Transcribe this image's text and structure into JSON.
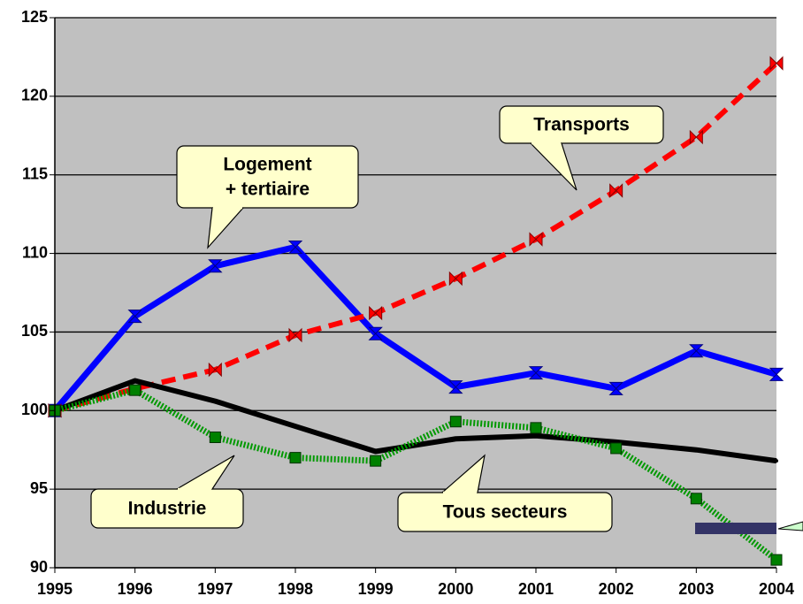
{
  "chart_data": {
    "type": "line",
    "categories": [
      "1995",
      "1996",
      "1997",
      "1998",
      "1999",
      "2000",
      "2001",
      "2002",
      "2003",
      "2004"
    ],
    "ylim": [
      90,
      125
    ],
    "yticks": [
      90,
      95,
      100,
      105,
      110,
      115,
      120,
      125
    ],
    "grid": true,
    "series": [
      {
        "color": "#0000ff",
        "values": [
          100,
          106.0,
          109.2,
          110.4,
          104.9,
          101.5,
          102.4,
          101.4,
          103.8,
          102.3
        ]
      },
      {
        "color": "#ff0000",
        "values": [
          100,
          101.4,
          102.6,
          104.8,
          106.2,
          108.4,
          110.9,
          114.0,
          117.4,
          122.1
        ]
      },
      {
        "color": "#000000",
        "values": [
          100,
          101.9,
          100.6,
          99.0,
          97.4,
          98.2,
          98.4,
          98.0,
          97.5,
          96.8
        ]
      },
      {
        "color": "#009900",
        "values": [
          100,
          101.3,
          98.3,
          97.0,
          96.8,
          99.3,
          98.9,
          97.6,
          94.4,
          90.5
        ]
      }
    ],
    "annotations": [
      {
        "lines": [
          "Logement",
          "+ tertiaire"
        ]
      },
      {
        "lines": [
          "Transports"
        ]
      },
      {
        "lines": [
          "Industrie"
        ]
      },
      {
        "lines": [
          "Tous secteurs"
        ]
      }
    ]
  }
}
